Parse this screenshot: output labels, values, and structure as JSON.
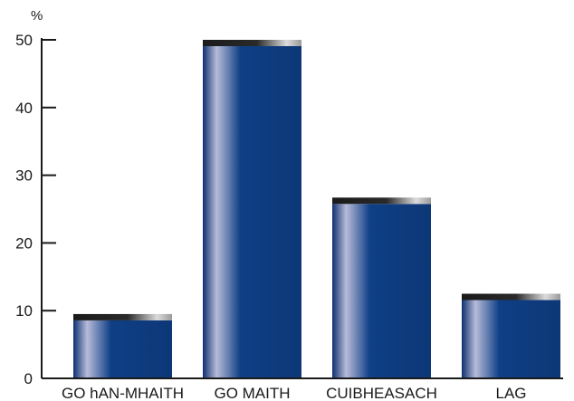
{
  "chart_data": {
    "type": "bar",
    "categories": [
      "GO hAN-MHAITH",
      "GO MAITH",
      "CUIBHEASACH",
      "LAG"
    ],
    "values": [
      9.5,
      50,
      26.7,
      12.5
    ],
    "ylabel": "%",
    "ylim": [
      0,
      50
    ],
    "yticks": [
      "0",
      "10",
      "20",
      "30",
      "40",
      "50"
    ],
    "grid": false,
    "colors": {
      "bar_edge": "#0d3070",
      "bar_mid": "#0f3f86",
      "bar_highlight": "#b7bcd9",
      "cap_dark": "#1a1a1a",
      "cap_light": "#dcdcdc",
      "axis": "#1a1a1a"
    }
  }
}
